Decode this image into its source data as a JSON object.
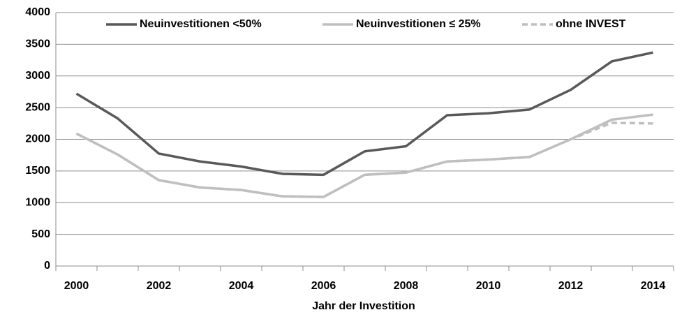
{
  "chart_data": {
    "type": "line",
    "x_label": "Jahr der Investition",
    "categories": [
      "2000",
      null,
      "2002",
      null,
      "2004",
      null,
      "2006",
      null,
      "2008",
      null,
      "2010",
      null,
      "2012",
      null,
      "2014"
    ],
    "series": [
      {
        "name": "Neuinvestitionen <50%",
        "color": "#595959",
        "dashed": false,
        "values": [
          2720,
          2330,
          1775,
          1650,
          1570,
          1455,
          1440,
          1810,
          1890,
          2380,
          2410,
          2470,
          2780,
          3230,
          3370
        ]
      },
      {
        "name": "Neuinvestitionen ≤ 25%",
        "color": "#bfbfbf",
        "dashed": false,
        "values": [
          2090,
          1760,
          1355,
          1240,
          1200,
          1100,
          1090,
          1440,
          1475,
          1650,
          1680,
          1720,
          2000,
          2310,
          2390
        ]
      },
      {
        "name": "ohne INVEST",
        "color": "#bfbfbf",
        "dashed": true,
        "values": [
          2090,
          1760,
          1355,
          1240,
          1200,
          1100,
          1090,
          1440,
          1475,
          1650,
          1680,
          1720,
          2000,
          2260,
          2250
        ]
      }
    ],
    "ylim": [
      0,
      4000
    ],
    "yticks": [
      0,
      500,
      1000,
      1500,
      2000,
      2500,
      3000,
      3500,
      4000
    ],
    "grid": true,
    "legend": "top"
  }
}
